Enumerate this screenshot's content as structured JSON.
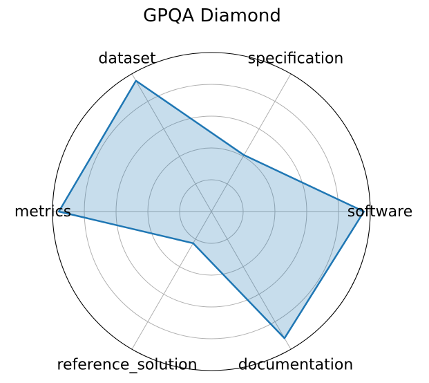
{
  "chart_data": {
    "type": "radar",
    "title": "GPQA Diamond",
    "categories": [
      "software",
      "specification",
      "dataset",
      "metrics",
      "reference_solution",
      "documentation"
    ],
    "series": [
      {
        "values": [
          0.96,
          0.41,
          0.95,
          0.96,
          0.23,
          0.92
        ],
        "color": "#1f77b4",
        "fill_opacity": 0.25
      }
    ],
    "rlim": [
      0,
      1
    ],
    "radial_gridlines": [
      0.2,
      0.4,
      0.6,
      0.8
    ],
    "radial_tick_labels_shown": false,
    "grid": true
  }
}
